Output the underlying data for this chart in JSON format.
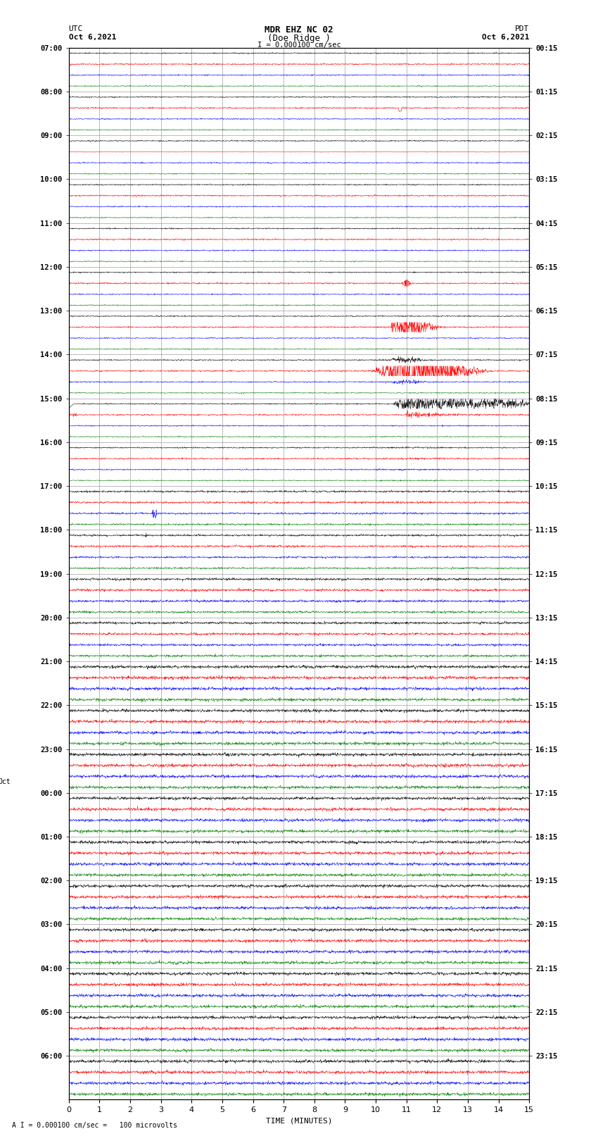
{
  "title_line1": "MDR EHZ NC 02",
  "title_line2": "(Doe Ridge )",
  "title_scale": "I = 0.000100 cm/sec",
  "left_label": "UTC",
  "left_date": "Oct 6,2021",
  "right_label": "PDT",
  "right_date": "Oct 6,2021",
  "xlabel": "TIME (MINUTES)",
  "footnote": "A I = 0.000100 cm/sec =   100 microvolts",
  "xlim": [
    0,
    15
  ],
  "utc_labels": [
    "07:00",
    "08:00",
    "09:00",
    "10:00",
    "11:00",
    "12:00",
    "13:00",
    "14:00",
    "15:00",
    "16:00",
    "17:00",
    "18:00",
    "19:00",
    "20:00",
    "21:00",
    "22:00",
    "23:00",
    "00:00",
    "01:00",
    "02:00",
    "03:00",
    "04:00",
    "05:00",
    "06:00"
  ],
  "pdt_labels": [
    "00:15",
    "01:15",
    "02:15",
    "03:15",
    "04:15",
    "05:15",
    "06:15",
    "07:15",
    "08:15",
    "09:15",
    "10:15",
    "11:15",
    "12:15",
    "13:15",
    "14:15",
    "15:15",
    "16:15",
    "17:15",
    "18:15",
    "19:15",
    "20:15",
    "21:15",
    "22:15",
    "23:15"
  ],
  "oct7_row": 17,
  "n_rows": 24,
  "traces_per_row": 4,
  "colors": [
    "black",
    "red",
    "blue",
    "green"
  ],
  "bg_color": "white",
  "grid_color": "#888888",
  "event_minute": 11.0,
  "noise_seed": 1234
}
